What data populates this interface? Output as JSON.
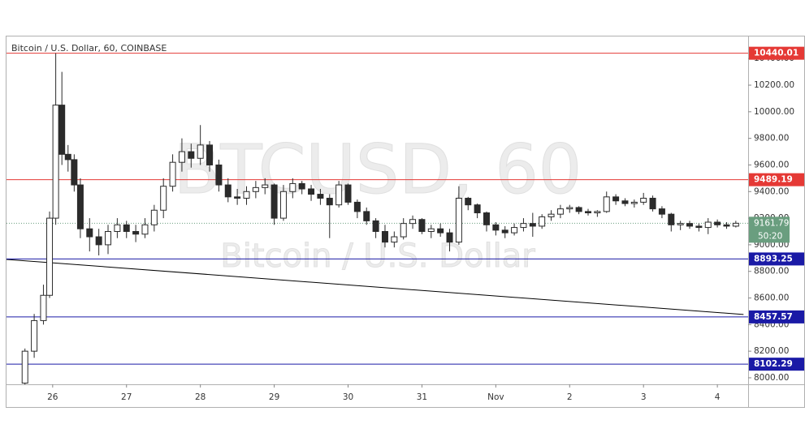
{
  "chart_data": {
    "type": "candlestick",
    "title": "Bitcoin / U.S. Dollar, 60, COINBASE",
    "watermark": "BTCUSD, 60",
    "watermark_subtitle": "Bitcoin / U.S. Dollar",
    "up_color": "#ffffff",
    "down_color": "#2b2b2b",
    "wick_color": "#2b2b2b",
    "xlim": [
      -15,
      226
    ],
    "ylim": [
      7951,
      10572
    ],
    "xticks": [
      {
        "value": 0,
        "label": "26"
      },
      {
        "value": 24,
        "label": "27"
      },
      {
        "value": 48,
        "label": "28"
      },
      {
        "value": 72,
        "label": "29"
      },
      {
        "value": 96,
        "label": "30"
      },
      {
        "value": 120,
        "label": "31"
      },
      {
        "value": 144,
        "label": "Nov"
      },
      {
        "value": 168,
        "label": "2"
      },
      {
        "value": 192,
        "label": "3"
      },
      {
        "value": 216,
        "label": "4"
      }
    ],
    "yticks": [
      {
        "value": 8000,
        "label": "8000.00"
      },
      {
        "value": 8200,
        "label": "8200.00"
      },
      {
        "value": 8400,
        "label": "8400.00"
      },
      {
        "value": 8600,
        "label": "8600.00"
      },
      {
        "value": 8800,
        "label": "8800.00"
      },
      {
        "value": 9000,
        "label": "9000.00"
      },
      {
        "value": 9200,
        "label": "9200.00"
      },
      {
        "value": 9400,
        "label": "9400.00"
      },
      {
        "value": 9600,
        "label": "9600.00"
      },
      {
        "value": 9800,
        "label": "9800.00"
      },
      {
        "value": 10000,
        "label": "10000.00"
      },
      {
        "value": 10200,
        "label": "10200.00"
      },
      {
        "value": 10400,
        "label": "10400.00"
      }
    ],
    "levels": [
      {
        "value": 10440.01,
        "color": "#e53935"
      },
      {
        "value": 9489.19,
        "color": "#e53935"
      },
      {
        "value": 8893.25,
        "color": "#1a1aa6"
      },
      {
        "value": 8457.57,
        "color": "#1a1aa6"
      },
      {
        "value": 8102.29,
        "color": "#1a1aa6"
      }
    ],
    "last_price": 9161.79,
    "last_price_color": "#6a9e7f",
    "countdown": "50:20",
    "trendline": {
      "x": [
        -15,
        224.5
      ],
      "y": [
        8890,
        8476
      ],
      "color": "#000000"
    },
    "candles": {
      "x": [
        -9,
        -6,
        -3,
        -1,
        1,
        3,
        5,
        7,
        9,
        12,
        15,
        18,
        21,
        24,
        27,
        30,
        33,
        36,
        39,
        42,
        45,
        48,
        51,
        54,
        57,
        60,
        63,
        66,
        69,
        72,
        75,
        78,
        81,
        84,
        87,
        90,
        93,
        96,
        99,
        102,
        105,
        108,
        111,
        114,
        117,
        120,
        123,
        126,
        129,
        132,
        135,
        138,
        141,
        144,
        147,
        150,
        153,
        156,
        159,
        162,
        165,
        168,
        171,
        174,
        177,
        180,
        183,
        186,
        189,
        192,
        195,
        198,
        201,
        204,
        207,
        210,
        213,
        216,
        219,
        222
      ],
      "open": [
        7960,
        8200,
        8430,
        8620,
        9200,
        10050,
        9680,
        9640,
        9450,
        9120,
        9060,
        9000,
        9100,
        9150,
        9100,
        9080,
        9150,
        9260,
        9440,
        9620,
        9700,
        9650,
        9750,
        9600,
        9450,
        9360,
        9350,
        9400,
        9430,
        9450,
        9200,
        9400,
        9460,
        9420,
        9380,
        9350,
        9300,
        9450,
        9320,
        9250,
        9180,
        9100,
        9020,
        9060,
        9160,
        9190,
        9100,
        9120,
        9090,
        9020,
        9350,
        9300,
        9240,
        9150,
        9110,
        9090,
        9130,
        9160,
        9140,
        9210,
        9230,
        9270,
        9280,
        9250,
        9240,
        9250,
        9360,
        9330,
        9310,
        9320,
        9350,
        9270,
        9230,
        9150,
        9160,
        9140,
        9130,
        9170,
        9150,
        9140
      ],
      "high": [
        8220,
        8480,
        8700,
        9250,
        10440,
        10300,
        9750,
        9680,
        9500,
        9200,
        9120,
        9150,
        9200,
        9180,
        9150,
        9200,
        9300,
        9500,
        9680,
        9800,
        9760,
        9900,
        9780,
        9640,
        9500,
        9420,
        9440,
        9480,
        9500,
        9460,
        9450,
        9500,
        9480,
        9450,
        9420,
        9380,
        9480,
        9460,
        9340,
        9280,
        9200,
        9150,
        9100,
        9200,
        9220,
        9200,
        9150,
        9160,
        9120,
        9440,
        9360,
        9310,
        9250,
        9170,
        9140,
        9160,
        9200,
        9240,
        9230,
        9260,
        9300,
        9300,
        9290,
        9270,
        9260,
        9400,
        9380,
        9350,
        9340,
        9390,
        9370,
        9290,
        9240,
        9180,
        9180,
        9160,
        9200,
        9190,
        9170,
        9180
      ],
      "low": [
        7950,
        8150,
        8400,
        8600,
        9150,
        9600,
        9550,
        9400,
        9050,
        8950,
        8920,
        8930,
        9050,
        9050,
        9020,
        9050,
        9100,
        9200,
        9400,
        9550,
        9580,
        9600,
        9550,
        9400,
        9320,
        9300,
        9300,
        9350,
        9380,
        9150,
        9180,
        9350,
        9380,
        9330,
        9300,
        9050,
        9280,
        9300,
        9200,
        9150,
        9050,
        8980,
        8980,
        9040,
        9120,
        9080,
        9050,
        9060,
        8950,
        9000,
        9260,
        9200,
        9100,
        9070,
        9050,
        9070,
        9100,
        9060,
        9120,
        9180,
        9200,
        9240,
        9230,
        9220,
        9210,
        9240,
        9300,
        9290,
        9280,
        9300,
        9250,
        9200,
        9100,
        9110,
        9120,
        9100,
        9080,
        9130,
        9120,
        9130
      ],
      "close": [
        8200,
        8430,
        8620,
        9200,
        10050,
        9680,
        9640,
        9450,
        9120,
        9060,
        9000,
        9100,
        9150,
        9100,
        9080,
        9150,
        9260,
        9440,
        9620,
        9700,
        9650,
        9750,
        9600,
        9450,
        9360,
        9350,
        9400,
        9430,
        9450,
        9200,
        9400,
        9460,
        9420,
        9380,
        9350,
        9300,
        9450,
        9320,
        9250,
        9180,
        9100,
        9020,
        9060,
        9160,
        9190,
        9100,
        9120,
        9090,
        9020,
        9350,
        9300,
        9240,
        9150,
        9110,
        9090,
        9130,
        9160,
        9140,
        9210,
        9230,
        9270,
        9280,
        9250,
        9240,
        9250,
        9360,
        9330,
        9310,
        9320,
        9350,
        9270,
        9230,
        9150,
        9160,
        9140,
        9130,
        9170,
        9150,
        9140,
        9161.79
      ]
    }
  }
}
